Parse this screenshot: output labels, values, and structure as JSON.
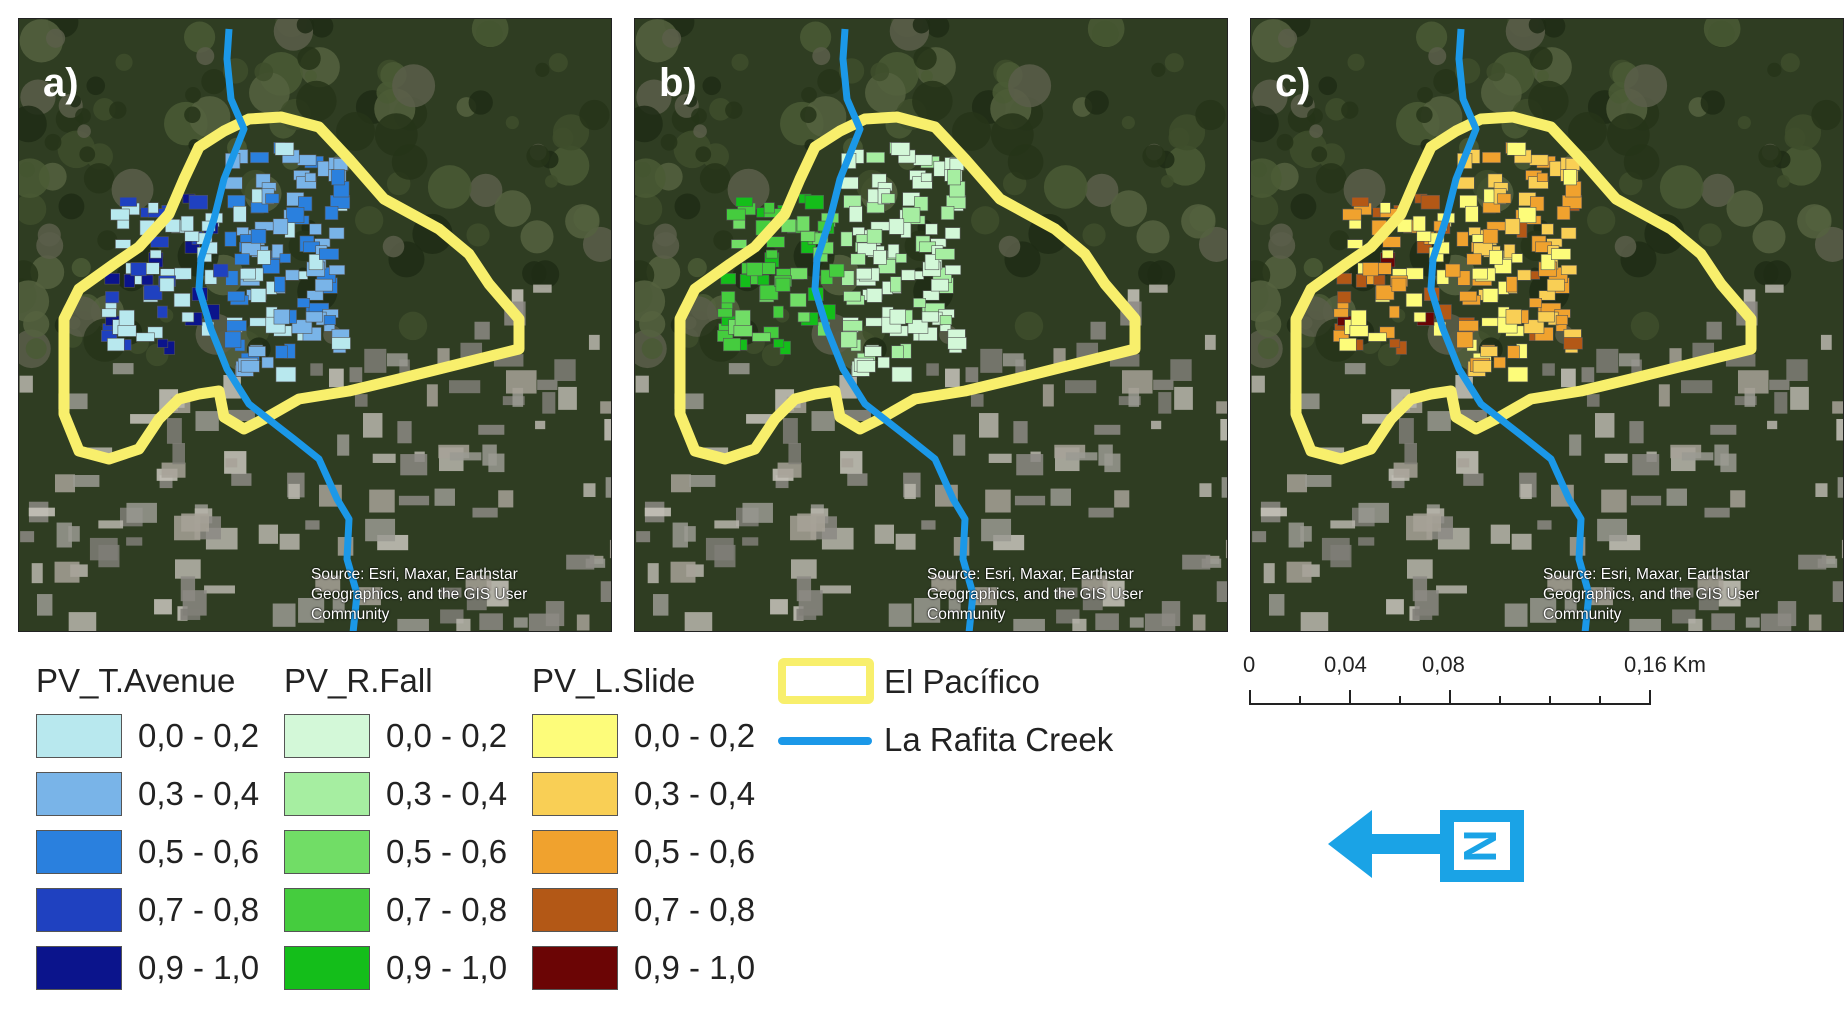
{
  "panels": [
    {
      "label": "a)",
      "source": "Source: Esri, Maxar, Earthstar Geographics, and the GIS User Community"
    },
    {
      "label": "b)",
      "source": "Source: Esri, Maxar, Earthstar Geographics, and the GIS User Community"
    },
    {
      "label": "c)",
      "source": "Source: Esri, Maxar, Earthstar Geographics, and the GIS User Community"
    }
  ],
  "legend": {
    "columns": [
      {
        "title": "PV_T.Avenue",
        "classes": [
          {
            "range": "0,0 - 0,2",
            "color": "#b8e8ee"
          },
          {
            "range": "0,3 - 0,4",
            "color": "#79b4e8"
          },
          {
            "range": "0,5 - 0,6",
            "color": "#2a80de"
          },
          {
            "range": "0,7 - 0,8",
            "color": "#1f41c0"
          },
          {
            "range": "0,9 - 1,0",
            "color": "#0b148c"
          }
        ]
      },
      {
        "title": "PV_R.Fall",
        "classes": [
          {
            "range": "0,0 - 0,2",
            "color": "#d3f8d8"
          },
          {
            "range": "0,3 - 0,4",
            "color": "#a6eea1"
          },
          {
            "range": "0,5 - 0,6",
            "color": "#71dd66"
          },
          {
            "range": "0,7 - 0,8",
            "color": "#45cc3e"
          },
          {
            "range": "0,9 - 1,0",
            "color": "#14be1a"
          }
        ]
      },
      {
        "title": "PV_L.Slide",
        "classes": [
          {
            "range": "0,0 - 0,2",
            "color": "#fdfc7a"
          },
          {
            "range": "0,3 - 0,4",
            "color": "#f9cf55"
          },
          {
            "range": "0,5 - 0,6",
            "color": "#f0a22e"
          },
          {
            "range": "0,7 - 0,8",
            "color": "#b35816"
          },
          {
            "range": "0,9 - 1,0",
            "color": "#6b0505"
          }
        ]
      }
    ],
    "aoi": {
      "label": "El Pacífico",
      "color": "#f8ef6c"
    },
    "creek": {
      "label": "La Rafita Creek",
      "color": "#1b98e8"
    }
  },
  "scale": {
    "ticks": [
      "0",
      "0,04",
      "0,08",
      "0,16 Km"
    ]
  },
  "north_arrow": {
    "letter": "N",
    "color": "#1aa3e6"
  }
}
